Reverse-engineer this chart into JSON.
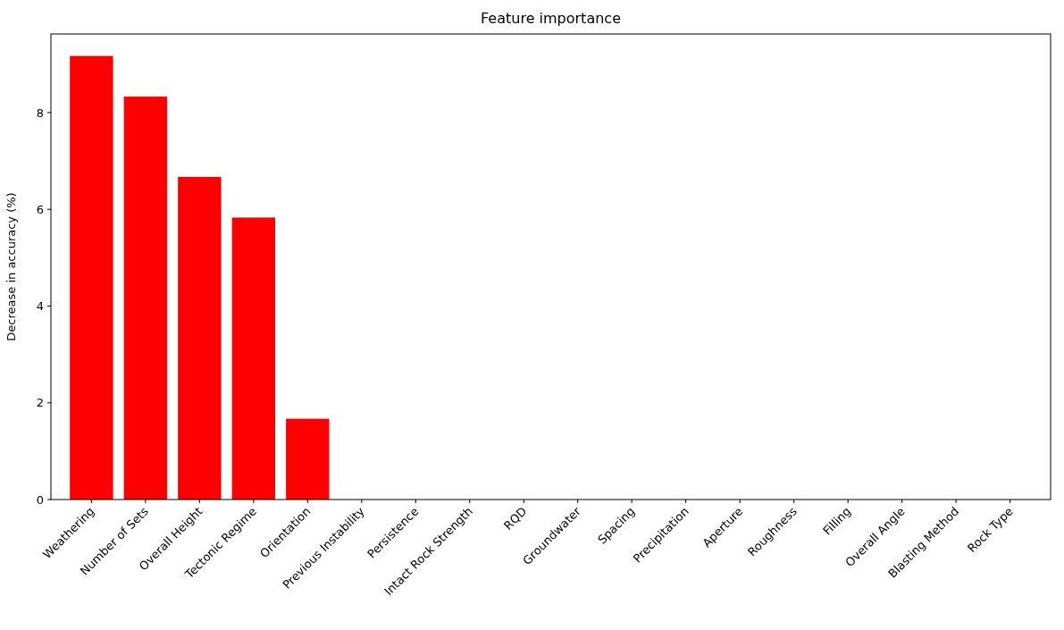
{
  "chart_data": {
    "type": "bar",
    "title": "Feature importance",
    "ylabel": "Decrease in accuracy (%)",
    "categories": [
      "Weathering",
      "Number of Sets",
      "Overall Height",
      "Tectonic Regime",
      "Orientation",
      "Previous Instability",
      "Persistence",
      "Intact Rock Strength",
      "RQD",
      "Groundwater",
      "Spacing",
      "Precipitation",
      "Aperture",
      "Roughness",
      "Filling",
      "Overall Angle",
      "Blasting Method",
      "Rock Type"
    ],
    "values": [
      9.17,
      8.33,
      6.67,
      5.83,
      1.67,
      0,
      0,
      0,
      0,
      0,
      0,
      0,
      0,
      0,
      0,
      0,
      0,
      0
    ],
    "color": "#ff0000",
    "ylim": [
      0,
      9.625
    ],
    "yticks": [
      0,
      2,
      4,
      6,
      8
    ],
    "grid": false
  }
}
